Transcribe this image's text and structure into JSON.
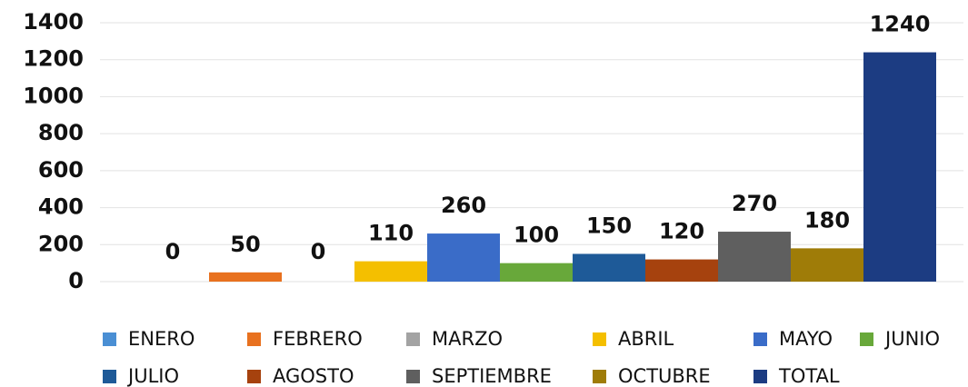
{
  "chart_data": {
    "type": "bar",
    "series": [
      {
        "name": "ENERO",
        "color": "#4a8fd4",
        "values": [
          0
        ]
      },
      {
        "name": "FEBRERO",
        "color": "#e8711f",
        "values": [
          50
        ]
      },
      {
        "name": "MARZO",
        "color": "#a3a3a3",
        "values": [
          0
        ]
      },
      {
        "name": "ABRIL",
        "color": "#f4bf00",
        "values": [
          110
        ]
      },
      {
        "name": "MAYO",
        "color": "#3a6cc8",
        "values": [
          260
        ]
      },
      {
        "name": "JUNIO",
        "color": "#68a83a",
        "values": [
          100
        ]
      },
      {
        "name": "JULIO",
        "color": "#1e5a98",
        "values": [
          150
        ]
      },
      {
        "name": "AGOSTO",
        "color": "#a6420e",
        "values": [
          120
        ]
      },
      {
        "name": "SEPTIEMBRE",
        "color": "#5f5f5f",
        "values": [
          270
        ]
      },
      {
        "name": "OCTUBRE",
        "color": "#9f7c08",
        "values": [
          180
        ]
      },
      {
        "name": "TOTAL",
        "color": "#1c3c82",
        "values": [
          1240
        ]
      }
    ],
    "ylim": [
      0,
      1400
    ],
    "yticks": [
      0,
      200,
      400,
      600,
      800,
      1000,
      1200,
      1400
    ],
    "grid": true
  }
}
